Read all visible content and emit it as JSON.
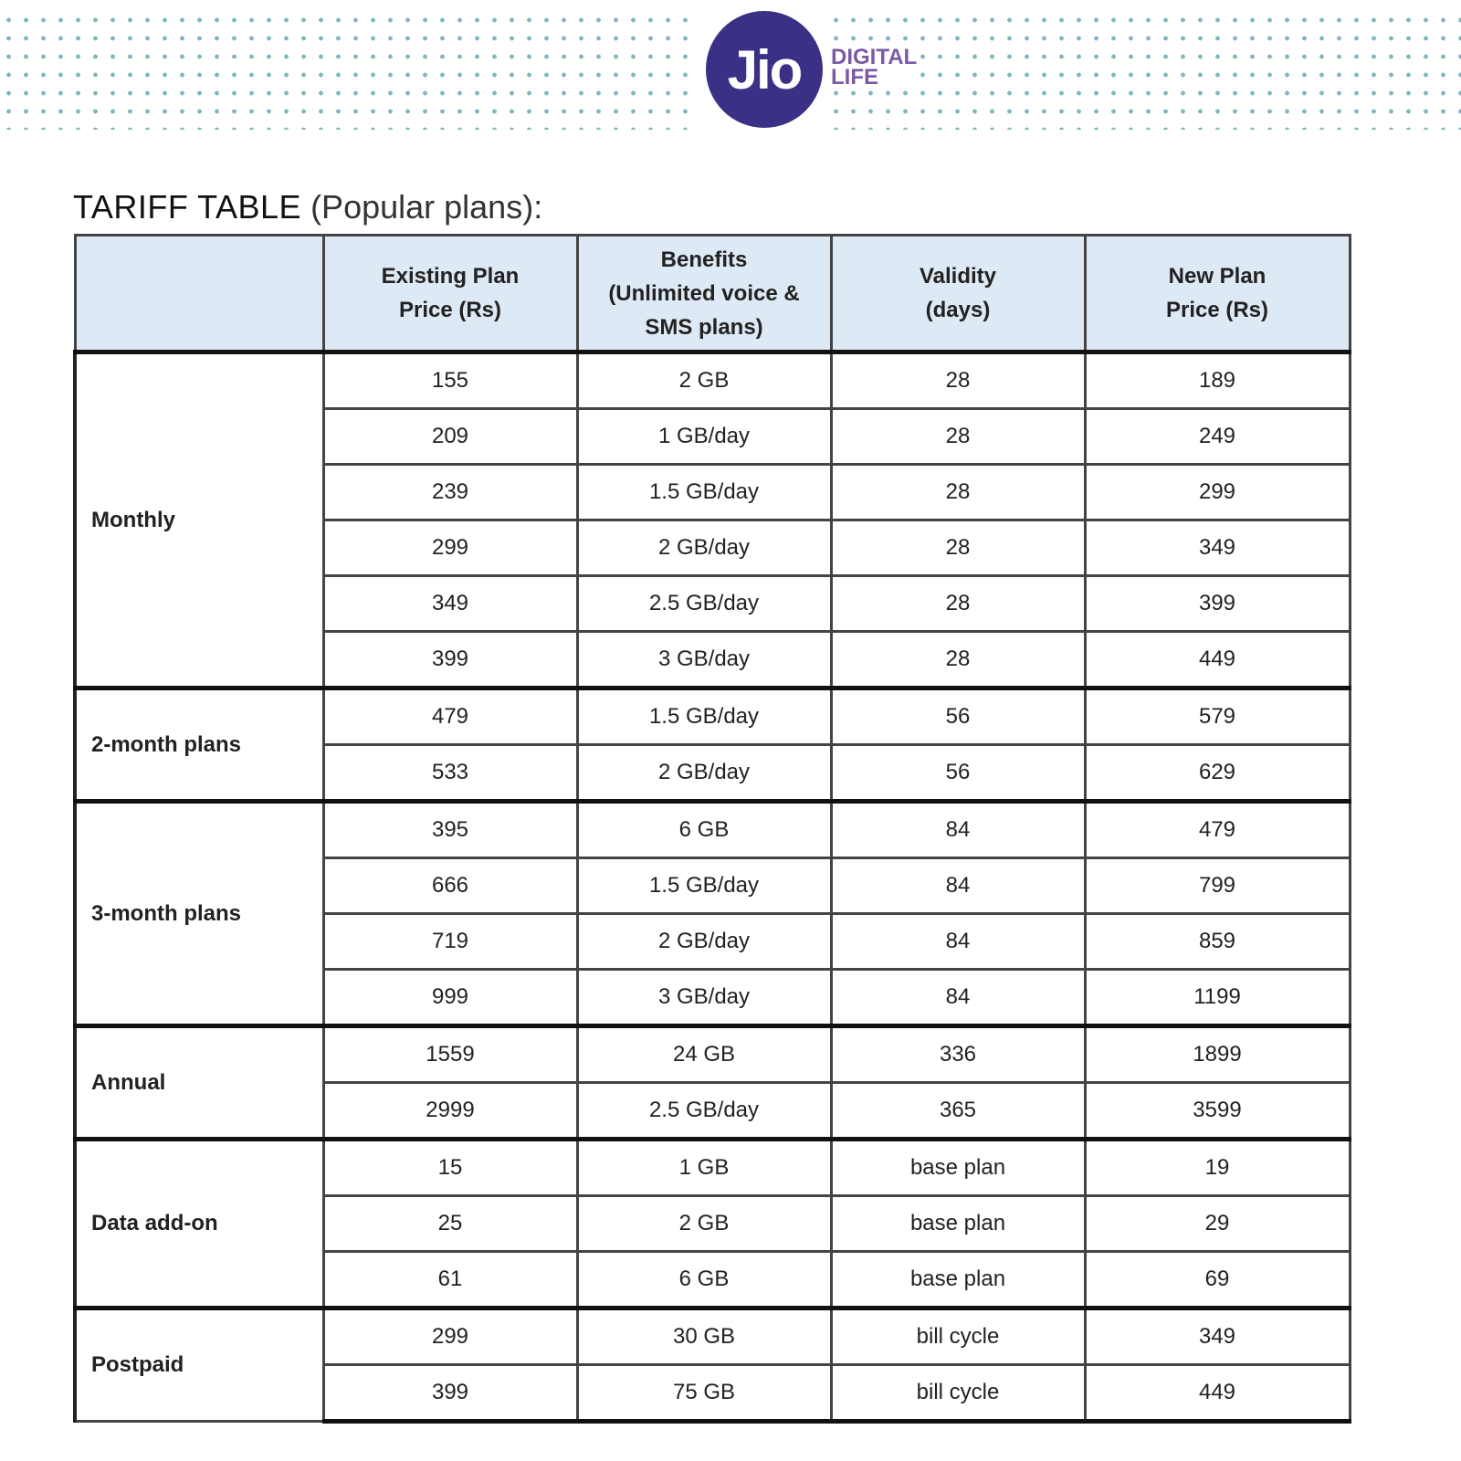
{
  "banner": {
    "logo_text": "Jio",
    "tagline_line1": "DIGITAL",
    "tagline_line2": "LIFE",
    "dot_color": "#7fb6bf",
    "logo_color": "#3a3085"
  },
  "title": {
    "main": "TARIFF TABLE",
    "sub": "(Popular plans):"
  },
  "table": {
    "headers": {
      "h1": "",
      "h2_line1": "Existing Plan",
      "h2_line2": "Price (Rs)",
      "h3_line1": "Benefits",
      "h3_line2": "(Unlimited voice &",
      "h3_line3": "SMS plans)",
      "h4_line1": "Validity",
      "h4_line2": "(days)",
      "h5_line1": "New Plan",
      "h5_line2": "Price (Rs)"
    },
    "groups": [
      {
        "name": "Monthly",
        "rows": [
          {
            "existing": "155",
            "benefit": "2 GB",
            "validity": "28",
            "new": "189"
          },
          {
            "existing": "209",
            "benefit": "1 GB/day",
            "validity": "28",
            "new": "249"
          },
          {
            "existing": "239",
            "benefit": "1.5 GB/day",
            "validity": "28",
            "new": "299"
          },
          {
            "existing": "299",
            "benefit": "2 GB/day",
            "validity": "28",
            "new": "349"
          },
          {
            "existing": "349",
            "benefit": "2.5 GB/day",
            "validity": "28",
            "new": "399"
          },
          {
            "existing": "399",
            "benefit": "3 GB/day",
            "validity": "28",
            "new": "449"
          }
        ]
      },
      {
        "name": "2-month plans",
        "rows": [
          {
            "existing": "479",
            "benefit": "1.5 GB/day",
            "validity": "56",
            "new": "579"
          },
          {
            "existing": "533",
            "benefit": "2 GB/day",
            "validity": "56",
            "new": "629"
          }
        ]
      },
      {
        "name": "3-month plans",
        "rows": [
          {
            "existing": "395",
            "benefit": "6 GB",
            "validity": "84",
            "new": "479"
          },
          {
            "existing": "666",
            "benefit": "1.5 GB/day",
            "validity": "84",
            "new": "799"
          },
          {
            "existing": "719",
            "benefit": "2 GB/day",
            "validity": "84",
            "new": "859"
          },
          {
            "existing": "999",
            "benefit": "3 GB/day",
            "validity": "84",
            "new": "1199"
          }
        ]
      },
      {
        "name": "Annual",
        "rows": [
          {
            "existing": "1559",
            "benefit": "24 GB",
            "validity": "336",
            "new": "1899"
          },
          {
            "existing": "2999",
            "benefit": "2.5 GB/day",
            "validity": "365",
            "new": "3599"
          }
        ]
      },
      {
        "name": "Data add-on",
        "rows": [
          {
            "existing": "15",
            "benefit": "1 GB",
            "validity": "base plan",
            "new": "19"
          },
          {
            "existing": "25",
            "benefit": "2 GB",
            "validity": "base plan",
            "new": "29"
          },
          {
            "existing": "61",
            "benefit": "6 GB",
            "validity": "base plan",
            "new": "69"
          }
        ]
      },
      {
        "name": "Postpaid",
        "rows": [
          {
            "existing": "299",
            "benefit": "30 GB",
            "validity": "bill cycle",
            "new": "349"
          },
          {
            "existing": "399",
            "benefit": "75 GB",
            "validity": "bill cycle",
            "new": "449"
          }
        ]
      }
    ]
  }
}
